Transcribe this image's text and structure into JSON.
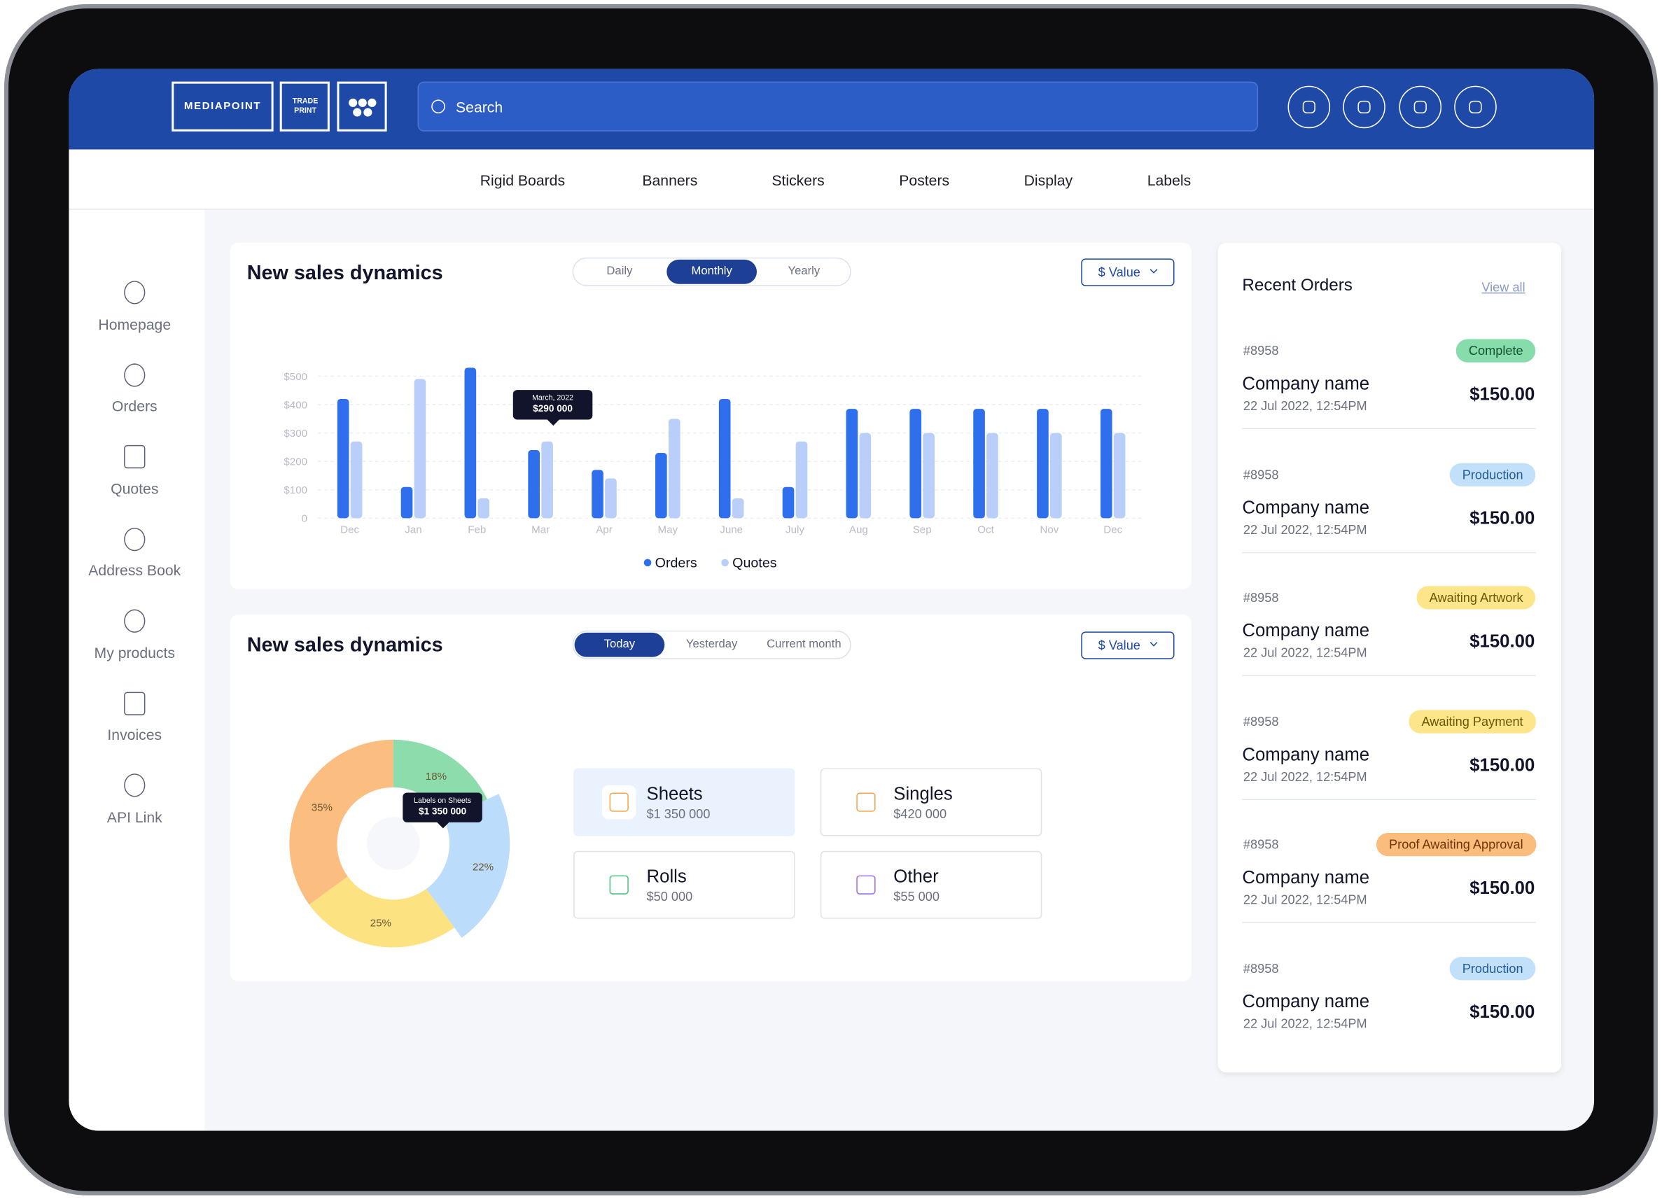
{
  "header": {
    "logo": "MEDIAPOINT",
    "logo_sub": [
      "TRADE",
      "PRINT"
    ],
    "search_placeholder": "Search"
  },
  "nav": [
    "Rigid Boards",
    "Banners",
    "Stickers",
    "Posters",
    "Display",
    "Labels"
  ],
  "sidebar": [
    "Homepage",
    "Orders",
    "Quotes",
    "Address Book",
    "My products",
    "Invoices",
    "API Link"
  ],
  "sales_card": {
    "title": "New sales dynamics",
    "tabs": [
      "Daily",
      "Monthly",
      "Yearly"
    ],
    "active_tab": 1,
    "value_button": "$ Value",
    "tooltip": {
      "title": "March, 2022",
      "value": "$290 000"
    }
  },
  "share_card": {
    "title": "New sales dynamics",
    "tabs": [
      "Today",
      "Yesterday",
      "Current month"
    ],
    "active_tab": 0,
    "value_button": "$ Value",
    "tooltip": {
      "title": "Labels on Sheets",
      "value": "$1 350 000"
    },
    "tiles": [
      {
        "name": "Sheets",
        "value": "$1 350 000",
        "color": "#f5a54a",
        "active": true
      },
      {
        "name": "Singles",
        "value": "$420 000",
        "color": "#f5a54a",
        "active": false
      },
      {
        "name": "Rolls",
        "value": "$50 000",
        "color": "#49c27f",
        "active": false
      },
      {
        "name": "Other",
        "value": "$55 000",
        "color": "#9b6cf0",
        "active": false
      }
    ]
  },
  "chart_data": [
    {
      "type": "bar",
      "categories": [
        "Dec",
        "Jan",
        "Feb",
        "Mar",
        "Apr",
        "May",
        "June",
        "July",
        "Aug",
        "Sep",
        "Oct",
        "Nov",
        "Dec"
      ],
      "series": [
        {
          "name": "Orders",
          "color": "#2f6fed",
          "values": [
            420,
            110,
            530,
            240,
            170,
            230,
            420,
            110,
            385,
            385,
            385,
            385,
            385
          ]
        },
        {
          "name": "Quotes",
          "color": "#b9cffa",
          "values": [
            270,
            490,
            70,
            270,
            140,
            350,
            70,
            270,
            300,
            300,
            300,
            300,
            300
          ]
        }
      ],
      "ylim": [
        0,
        540
      ],
      "yticks": [
        0,
        {
          "value": 100,
          "label": "$100"
        },
        {
          "value": 200,
          "label": "$200"
        },
        {
          "value": 300,
          "label": "$300"
        },
        {
          "value": 400,
          "label": "$400"
        },
        {
          "value": 500,
          "label": "$500"
        }
      ],
      "grid": true,
      "legend": "bottom"
    },
    {
      "type": "pie",
      "values": [
        18,
        22,
        25,
        35
      ],
      "value_labels": [
        "18%",
        "22%",
        "25%",
        "35%"
      ],
      "colors": [
        "#8ddcab",
        "#bcdcfb",
        "#fde281",
        "#fcbd80"
      ],
      "explode": [
        false,
        true,
        false,
        false
      ],
      "donut": true
    }
  ],
  "orders": {
    "title": "Recent Orders",
    "view_all": "View all",
    "items": [
      {
        "id": "#8958",
        "status": "Complete",
        "status_bg": "#86dcaa",
        "status_fg": "#14512f",
        "company": "Company name",
        "date": "22 Jul 2022, 12:54PM",
        "amount": "$150.00"
      },
      {
        "id": "#8958",
        "status": "Production",
        "status_bg": "#c3e0fb",
        "status_fg": "#1f5a96",
        "company": "Company name",
        "date": "22 Jul 2022, 12:54PM",
        "amount": "$150.00"
      },
      {
        "id": "#8958",
        "status": "Awaiting Artwork",
        "status_bg": "#fde58a",
        "status_fg": "#6e5500",
        "company": "Company name",
        "date": "22 Jul 2022, 12:54PM",
        "amount": "$150.00"
      },
      {
        "id": "#8958",
        "status": "Awaiting Payment",
        "status_bg": "#fde58a",
        "status_fg": "#6e5500",
        "company": "Company name",
        "date": "22 Jul 2022, 12:54PM",
        "amount": "$150.00"
      },
      {
        "id": "#8958",
        "status": "Proof Awaiting Approval",
        "status_bg": "#fbbd7e",
        "status_fg": "#6e3500",
        "company": "Company name",
        "date": "22 Jul 2022, 12:54PM",
        "amount": "$150.00"
      },
      {
        "id": "#8958",
        "status": "Production",
        "status_bg": "#c3e0fb",
        "status_fg": "#1f5a96",
        "company": "Company name",
        "date": "22 Jul 2022, 12:54PM",
        "amount": "$150.00"
      }
    ]
  }
}
